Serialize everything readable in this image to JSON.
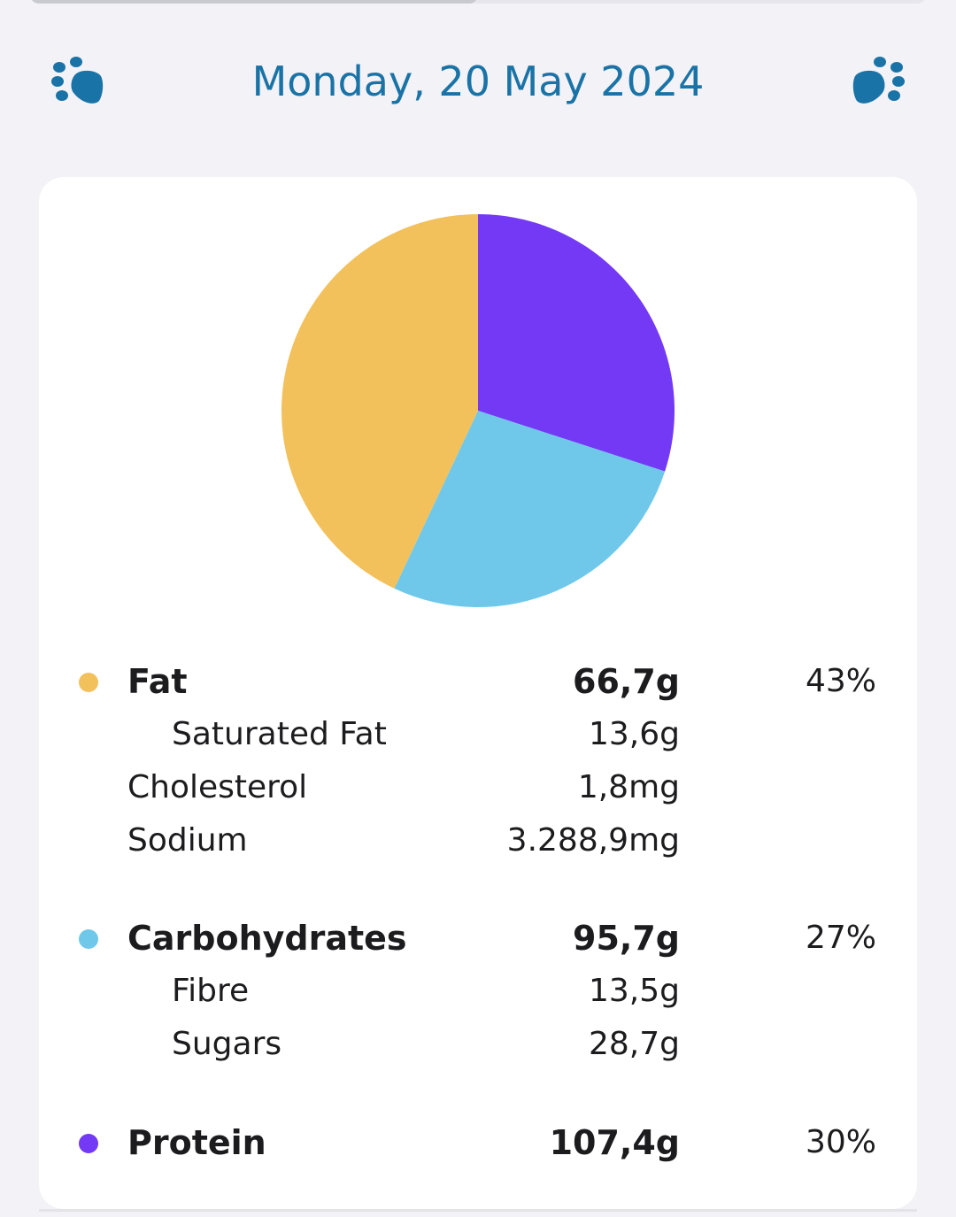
{
  "header": {
    "date": "Monday, 20 May 2024",
    "prev_icon": "paw-icon",
    "next_icon": "paw-icon",
    "accent_color": "#1a73a6"
  },
  "progress": {
    "value": 0.5
  },
  "colors": {
    "fat": "#f2c15b",
    "carbohydrates": "#6fc8ea",
    "protein": "#7339f5"
  },
  "chart_data": {
    "type": "pie",
    "slices": [
      {
        "name": "Protein",
        "value": 30,
        "color": "#7339f5"
      },
      {
        "name": "Carbohydrates",
        "value": 27,
        "color": "#6fc8ea"
      },
      {
        "name": "Fat",
        "value": 43,
        "color": "#f2c15b"
      }
    ],
    "start_angle_deg": 0,
    "direction": "clockwise"
  },
  "nutrients": {
    "fat": {
      "label": "Fat",
      "value": "66,7g",
      "percent": "43%"
    },
    "saturated_fat": {
      "label": "Saturated Fat",
      "value": "13,6g"
    },
    "cholesterol": {
      "label": "Cholesterol",
      "value": "1,8mg"
    },
    "sodium": {
      "label": "Sodium",
      "value": "3.288,9mg"
    },
    "carbohydrates": {
      "label": "Carbohydrates",
      "value": "95,7g",
      "percent": "27%"
    },
    "fibre": {
      "label": "Fibre",
      "value": "13,5g"
    },
    "sugars": {
      "label": "Sugars",
      "value": "28,7g"
    },
    "protein": {
      "label": "Protein",
      "value": "107,4g",
      "percent": "30%"
    }
  }
}
